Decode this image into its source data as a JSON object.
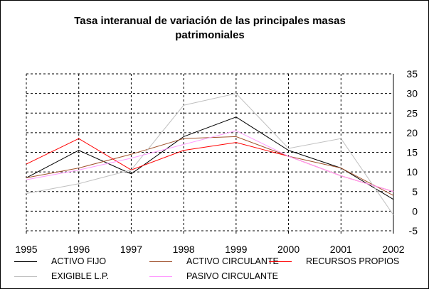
{
  "chart_data": {
    "type": "line",
    "title": "Tasa interanual de variación de las principales masas patrimoniales",
    "x": [
      "1995",
      "1996",
      "1997",
      "1998",
      "1999",
      "2000",
      "2001",
      "2002"
    ],
    "ylim": [
      -5,
      35
    ],
    "yticks": [
      "35",
      "30",
      "25",
      "20",
      "15",
      "10",
      "5",
      "0",
      "-5"
    ],
    "grid": true,
    "legend": "bottom",
    "series": [
      {
        "name": "ACTIVO FIJO",
        "color": "#000000",
        "values": [
          8.5,
          15.5,
          9.5,
          19,
          24,
          15.5,
          11,
          3
        ]
      },
      {
        "name": "ACTIVO CIRCULANTE",
        "color": "#a0522d",
        "values": [
          8.5,
          11,
          14.5,
          18.5,
          19,
          14,
          11,
          4
        ]
      },
      {
        "name": "RECURSOS PROPIOS",
        "color": "#ff0000",
        "values": [
          12,
          18.5,
          10.5,
          15.5,
          17.5,
          14,
          9,
          5
        ]
      },
      {
        "name": "EXIGIBLE L.P.",
        "color": "#c0c0c0",
        "values": [
          4.5,
          7,
          10.5,
          27,
          30,
          16,
          18.5,
          -1
        ]
      },
      {
        "name": "PASIVO CIRCULANTE",
        "color": "#ff99ff",
        "values": [
          8,
          10.5,
          13.5,
          17,
          20.5,
          14,
          9,
          5
        ]
      }
    ]
  }
}
